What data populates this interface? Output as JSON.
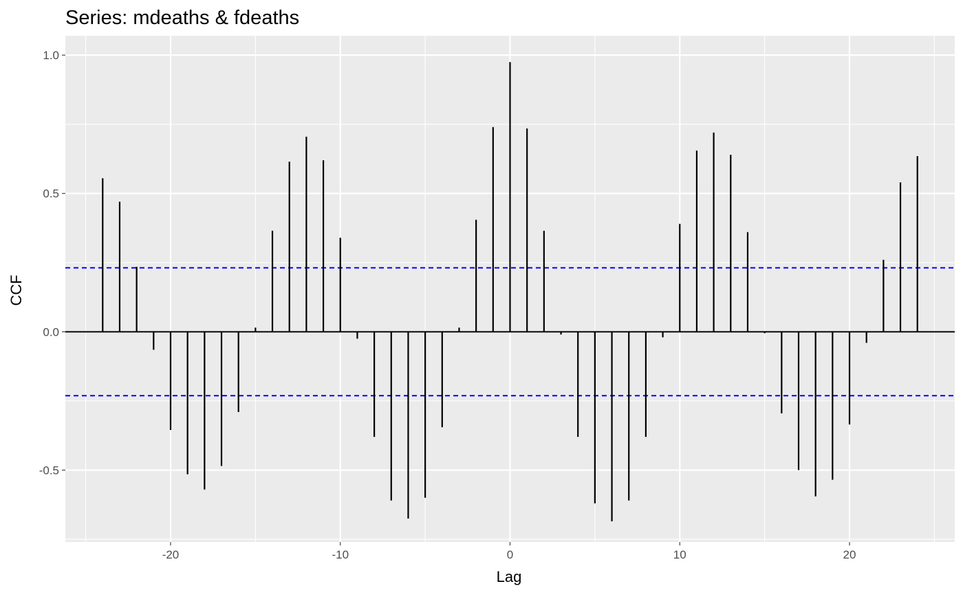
{
  "chart_data": {
    "type": "bar",
    "title": "Series: mdeaths & fdeaths",
    "xlabel": "Lag",
    "ylabel": "CCF",
    "x": [
      -24,
      -23,
      -22,
      -21,
      -20,
      -19,
      -18,
      -17,
      -16,
      -15,
      -14,
      -13,
      -12,
      -11,
      -10,
      -9,
      -8,
      -7,
      -6,
      -5,
      -4,
      -3,
      -2,
      -1,
      0,
      1,
      2,
      3,
      4,
      5,
      6,
      7,
      8,
      9,
      10,
      11,
      12,
      13,
      14,
      15,
      16,
      17,
      18,
      19,
      20,
      21,
      22,
      23,
      24
    ],
    "values": [
      0.555,
      0.47,
      0.235,
      -0.065,
      -0.355,
      -0.515,
      -0.57,
      -0.485,
      -0.29,
      0.015,
      0.365,
      0.615,
      0.705,
      0.62,
      0.34,
      -0.025,
      -0.38,
      -0.61,
      -0.675,
      -0.6,
      -0.345,
      0.015,
      0.405,
      0.74,
      0.975,
      0.735,
      0.365,
      -0.01,
      -0.38,
      -0.62,
      -0.685,
      -0.61,
      -0.38,
      -0.02,
      0.39,
      0.655,
      0.72,
      0.64,
      0.36,
      -0.005,
      -0.295,
      -0.5,
      -0.595,
      -0.535,
      -0.335,
      -0.04,
      0.26,
      0.54,
      0.635
    ],
    "confidence_interval": [
      -0.231,
      0.231
    ],
    "xlim": [
      -26.2,
      26.2
    ],
    "ylim": [
      -0.76,
      1.07
    ],
    "x_ticks": [
      "-20",
      "-10",
      "0",
      "10",
      "20"
    ],
    "y_ticks": [
      "-0.5",
      "0.0",
      "0.5",
      "1.0"
    ],
    "colors": {
      "panel": "#ebebeb",
      "grid": "#ffffff",
      "bars": "#000000",
      "ci_line": "#0000ff"
    }
  }
}
